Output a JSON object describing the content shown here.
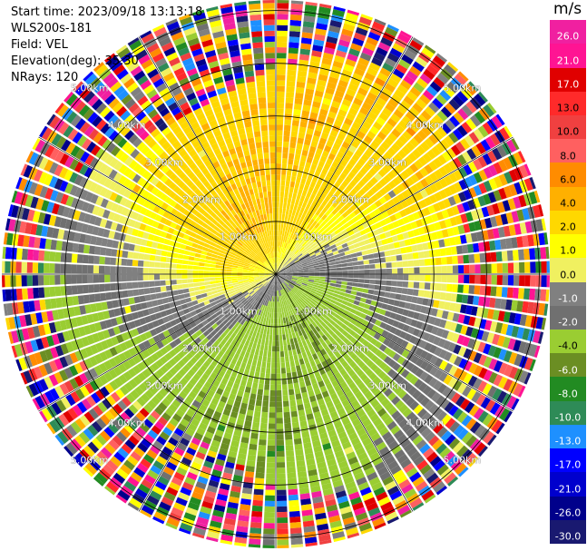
{
  "header": {
    "start_time": "Start time: 2023/09/18 13:13:18",
    "site": "WLS200s-181",
    "field": "Field: VEL",
    "elevation": "Elevation(deg): 35.30",
    "nrays": "NRays: 120"
  },
  "chart_data": {
    "type": "heatmap",
    "projection": "polar-ppi",
    "rays": 120,
    "range_rings": [
      {
        "distance_km": 1.0,
        "label": "1.00km"
      },
      {
        "distance_km": 2.0,
        "label": "2.00km"
      },
      {
        "distance_km": 3.0,
        "label": "3.00km"
      },
      {
        "distance_km": 4.0,
        "label": "4.00km"
      },
      {
        "distance_km": 5.0,
        "label": "5.00km"
      }
    ],
    "max_range_km": 5.2,
    "colorbar": {
      "unit": "m/s",
      "ticks": [
        "26.0",
        "21.0",
        "17.0",
        "13.0",
        "10.0",
        "8.0",
        "6.0",
        "4.0",
        "2.0",
        "1.0",
        "0.0",
        "-1.0",
        "-2.0",
        "-4.0",
        "-6.0",
        "-8.0",
        "-10.0",
        "-13.0",
        "-17.0",
        "-21.0",
        "-26.0",
        "-30.0"
      ],
      "colors": [
        "#f020a0",
        "#ff1493",
        "#e00000",
        "#ff2a2a",
        "#f04040",
        "#ff6060",
        "#ff8c00",
        "#ffb000",
        "#ffd800",
        "#ffff00",
        "#f0f060",
        "#808080",
        "#707070",
        "#9acd32",
        "#6b8e23",
        "#228b22",
        "#2e8b57",
        "#1e90ff",
        "#0000ff",
        "#0000cd",
        "#00008b",
        "#191970"
      ],
      "range": [
        -30,
        26
      ]
    },
    "velocity_pattern": {
      "near_field_positive": "yellow/orange in north-west half",
      "near_field_negative": "olive/green in south-east half",
      "zero_band": "gray along the axis between them",
      "outer_range_noise": "random multicolor beyond about 4.2 km"
    }
  }
}
